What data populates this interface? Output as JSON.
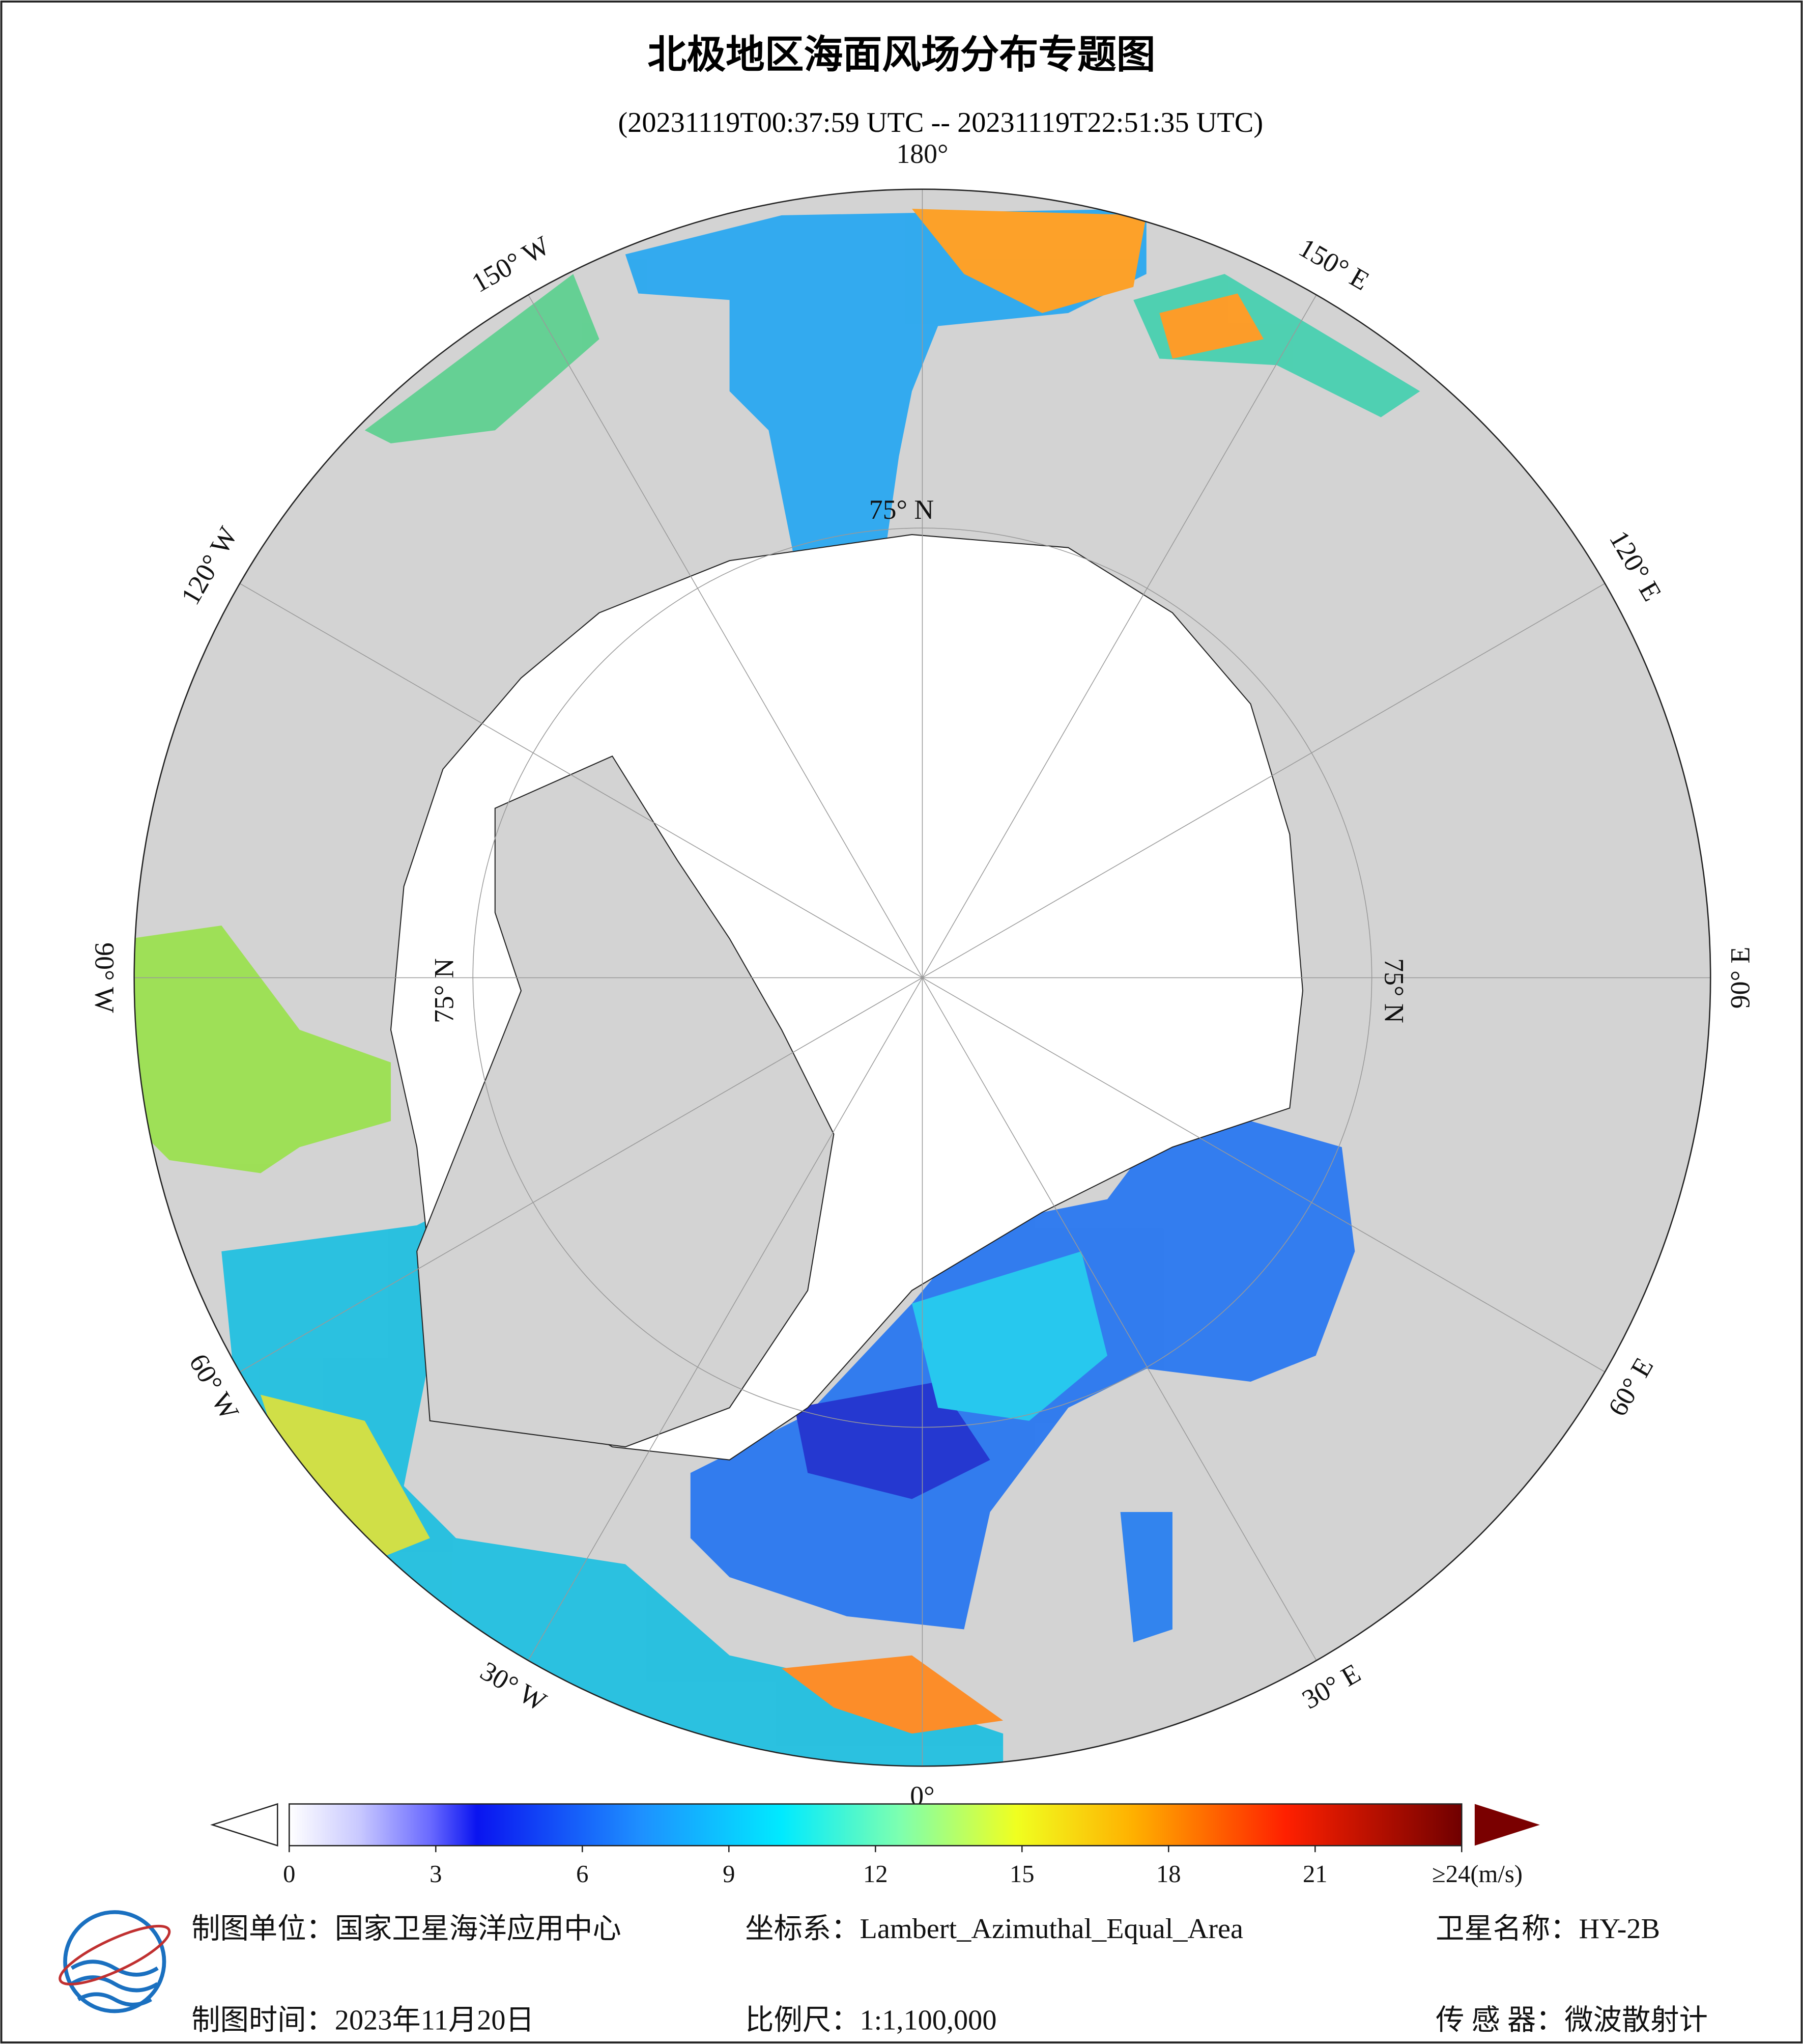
{
  "title": "北极地区海面风场分布专题图",
  "subtitle": "(20231119T00:37:59 UTC -- 20231119T22:51:35 UTC)",
  "map": {
    "lon_labels": [
      "180°",
      "150° W",
      "120° W",
      "90° W",
      "60° W",
      "30° W",
      "0°",
      "30° E",
      "60° E",
      "90° E",
      "120° E",
      "150° E"
    ],
    "lat_labels": [
      "75° N",
      "75° N",
      "75° N"
    ]
  },
  "colorbar": {
    "range": [
      0,
      24
    ],
    "ticks": [
      0,
      3,
      6,
      9,
      12,
      15,
      18,
      21,
      {
        "value": 24,
        "label": "≥24(m/s)"
      }
    ]
  },
  "footer": {
    "unit": "制图单位：国家卫星海洋应用中心",
    "projection": "坐标系：Lambert_Azimuthal_Equal_Area",
    "satellite": "卫星名称：HY-2B",
    "date": "制图时间：2023年11月20日",
    "scale": "比例尺：1:1,100,000",
    "sensor": "传 感 器：微波散射计"
  }
}
